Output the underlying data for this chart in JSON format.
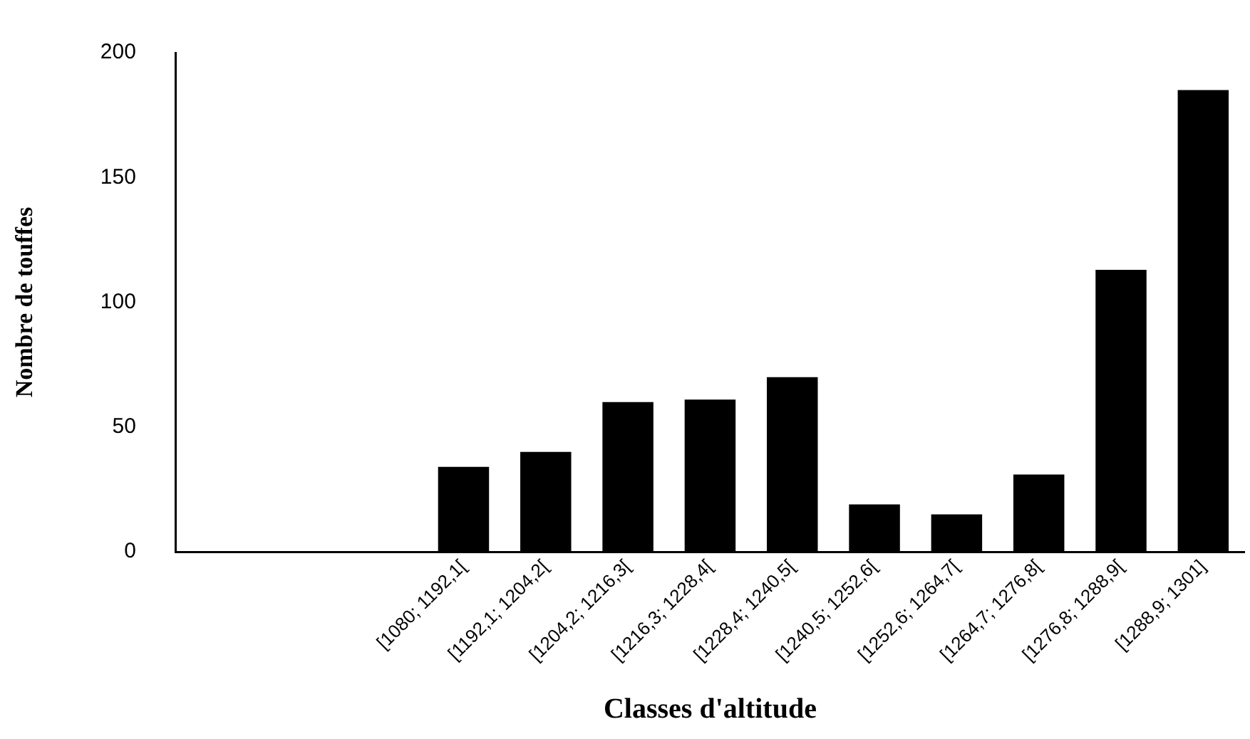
{
  "chart_data": {
    "type": "bar",
    "xlabel": "Classes d'altitude",
    "ylabel": "Nombre de touffes",
    "categories": [
      null,
      null,
      null,
      "[1080; 1192,1[",
      "[1192,1; 1204,2[",
      "[1204,2; 1216,3[",
      "[1216,3; 1228,4[",
      "[1228,4; 1240,5[",
      "[1240,5; 1252,6[",
      "[1252,6; 1264,7[",
      "[1264,7; 1276,8[",
      "[1276,8; 1288,9[",
      "[1288,9; 1301]"
    ],
    "values": [
      null,
      null,
      null,
      34,
      40,
      60,
      61,
      70,
      19,
      15,
      31,
      113,
      185
    ],
    "color": "#000000",
    "ylim": [
      0,
      200
    ],
    "yticks": [
      0,
      50,
      100,
      150,
      200
    ],
    "grid": false,
    "legend": false
  }
}
